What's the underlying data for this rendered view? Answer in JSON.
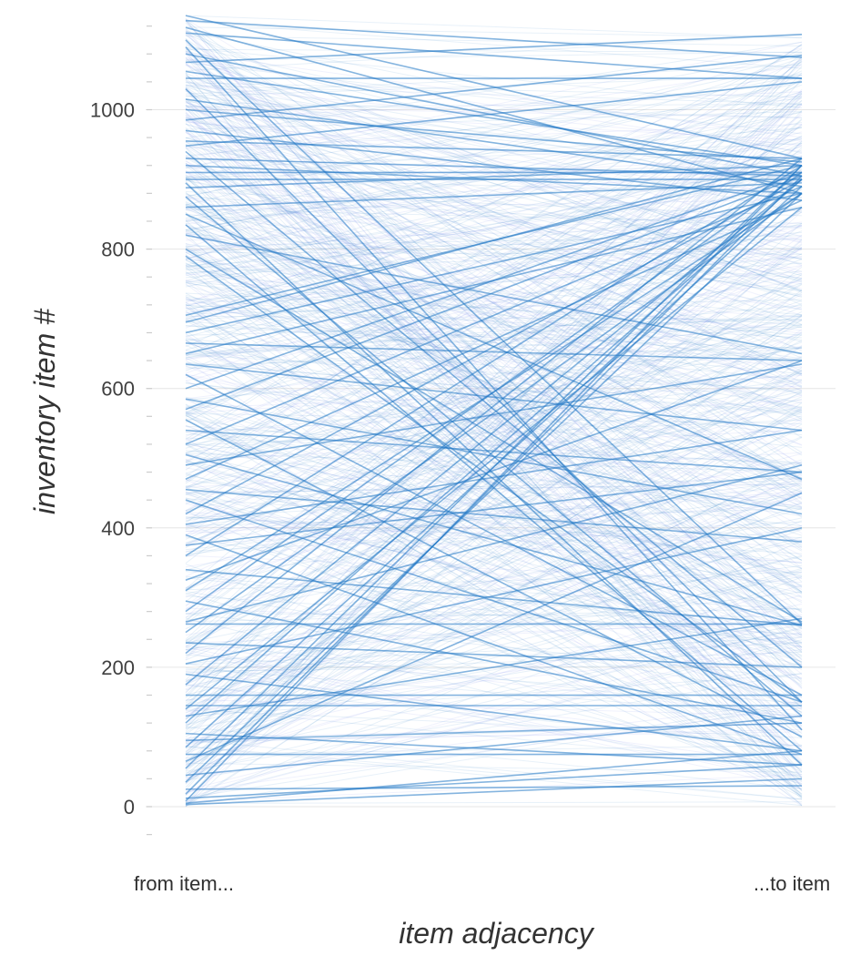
{
  "chart_data": {
    "type": "line",
    "title": "",
    "xlabel": "item adjacency",
    "ylabel": "inventory item #",
    "categories": [
      "from item...",
      "...to item"
    ],
    "ylim": [
      -40,
      1140
    ],
    "y_ticks": [
      0,
      200,
      400,
      600,
      800,
      1000
    ],
    "y_tick_labels": [
      "0",
      "200",
      "400",
      "600",
      "800",
      "1000"
    ],
    "y_minor_step": 40,
    "grid": true,
    "legend": "none",
    "colors": {
      "line": "#1f77c4",
      "background_line": "#6c7fe8",
      "grid": "#e6e6e6"
    },
    "series": [
      {
        "values": [
          1135,
          930
        ]
      },
      {
        "values": [
          1128,
          1075
        ]
      },
      {
        "values": [
          1118,
          880
        ]
      },
      {
        "values": [
          1110,
          1045
        ]
      },
      {
        "values": [
          1100,
          262
        ]
      },
      {
        "values": [
          1090,
          110
        ]
      },
      {
        "values": [
          1080,
          905
        ]
      },
      {
        "values": [
          1068,
          1108
        ]
      },
      {
        "values": [
          1055,
          920
        ]
      },
      {
        "values": [
          1045,
          1045
        ]
      },
      {
        "values": [
          1030,
          150
        ]
      },
      {
        "values": [
          1015,
          890
        ]
      },
      {
        "values": [
          1000,
          925
        ]
      },
      {
        "values": [
          985,
          1078
        ]
      },
      {
        "values": [
          970,
          870
        ]
      },
      {
        "values": [
          955,
          930
        ]
      },
      {
        "values": [
          948,
          1040
        ]
      },
      {
        "values": [
          940,
          200
        ]
      },
      {
        "values": [
          930,
          905
        ]
      },
      {
        "values": [
          920,
          880
        ]
      },
      {
        "values": [
          910,
          910
        ]
      },
      {
        "values": [
          900,
          900
        ]
      },
      {
        "values": [
          895,
          60
        ]
      },
      {
        "values": [
          888,
          920
        ]
      },
      {
        "values": [
          875,
          130
        ]
      },
      {
        "values": [
          860,
          895
        ]
      },
      {
        "values": [
          850,
          470
        ]
      },
      {
        "values": [
          835,
          80
        ]
      },
      {
        "values": [
          820,
          650
        ]
      },
      {
        "values": [
          800,
          265
        ]
      },
      {
        "values": [
          790,
          150
        ]
      },
      {
        "values": [
          705,
          920
        ]
      },
      {
        "values": [
          695,
          930
        ]
      },
      {
        "values": [
          680,
          880
        ]
      },
      {
        "values": [
          665,
          640
        ]
      },
      {
        "values": [
          650,
          860
        ]
      },
      {
        "values": [
          635,
          540
        ]
      },
      {
        "values": [
          620,
          160
        ]
      },
      {
        "values": [
          600,
          910
        ]
      },
      {
        "values": [
          585,
          420
        ]
      },
      {
        "values": [
          570,
          905
        ]
      },
      {
        "values": [
          555,
          100
        ]
      },
      {
        "values": [
          540,
          480
        ]
      },
      {
        "values": [
          520,
          890
        ]
      },
      {
        "values": [
          505,
          260
        ]
      },
      {
        "values": [
          490,
          635
        ]
      },
      {
        "values": [
          470,
          870
        ]
      },
      {
        "values": [
          455,
          380
        ]
      },
      {
        "values": [
          440,
          150
        ]
      },
      {
        "values": [
          420,
          900
        ]
      },
      {
        "values": [
          405,
          540
        ]
      },
      {
        "values": [
          390,
          75
        ]
      },
      {
        "values": [
          375,
          480
        ]
      },
      {
        "values": [
          360,
          920
        ]
      },
      {
        "values": [
          340,
          260
        ]
      },
      {
        "values": [
          325,
          640
        ]
      },
      {
        "values": [
          310,
          880
        ]
      },
      {
        "values": [
          295,
          120
        ]
      },
      {
        "values": [
          280,
          910
        ]
      },
      {
        "values": [
          265,
          490
        ]
      },
      {
        "values": [
          262,
          262
        ]
      },
      {
        "values": [
          250,
          880
        ]
      },
      {
        "values": [
          235,
          200
        ]
      },
      {
        "values": [
          220,
          930
        ]
      },
      {
        "values": [
          205,
          400
        ]
      },
      {
        "values": [
          190,
          80
        ]
      },
      {
        "values": [
          175,
          900
        ]
      },
      {
        "values": [
          160,
          160
        ]
      },
      {
        "values": [
          145,
          145
        ]
      },
      {
        "values": [
          140,
          860
        ]
      },
      {
        "values": [
          130,
          270
        ]
      },
      {
        "values": [
          120,
          900
        ]
      },
      {
        "values": [
          105,
          60
        ]
      },
      {
        "values": [
          95,
          120
        ]
      },
      {
        "values": [
          85,
          890
        ]
      },
      {
        "values": [
          75,
          75
        ]
      },
      {
        "values": [
          65,
          450
        ]
      },
      {
        "values": [
          55,
          920
        ]
      },
      {
        "values": [
          45,
          130
        ]
      },
      {
        "values": [
          35,
          880
        ]
      },
      {
        "values": [
          25,
          30
        ]
      },
      {
        "values": [
          18,
          905
        ]
      },
      {
        "values": [
          12,
          60
        ]
      },
      {
        "values": [
          8,
          920
        ]
      },
      {
        "values": [
          5,
          80
        ]
      },
      {
        "values": [
          3,
          40
        ]
      }
    ]
  }
}
